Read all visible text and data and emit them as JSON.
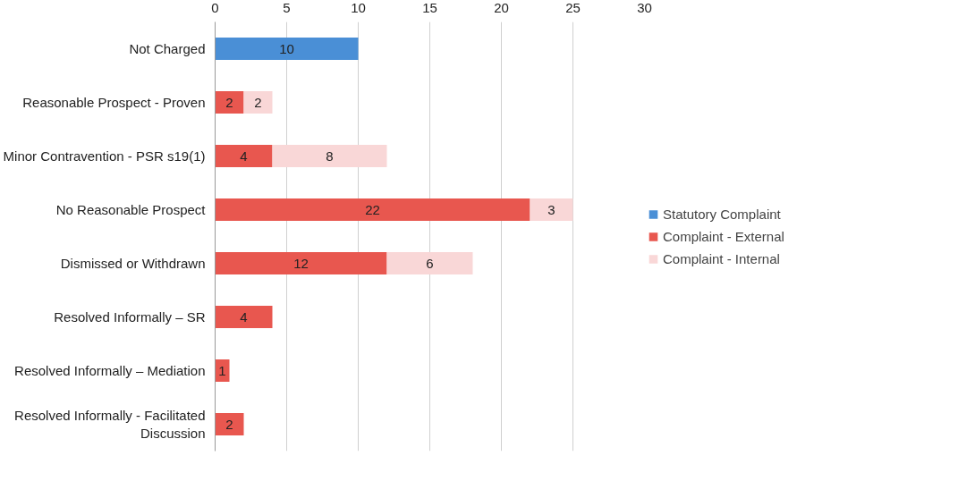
{
  "chart_data": {
    "type": "bar",
    "orientation": "horizontal",
    "stacked": true,
    "data_labels": true,
    "grid": "x",
    "legend": "right",
    "categories": [
      "Not Charged",
      "Reasonable Prospect - Proven",
      "Minor Contravention - PSR s19(1)",
      "No Reasonable Prospect",
      "Dismissed or Withdrawn",
      "Resolved Informally – SR",
      "Resolved Informally – Mediation",
      "Resolved Informally - Facilitated Discussion"
    ],
    "xlim": [
      0,
      30
    ],
    "xticks": [
      0,
      5,
      10,
      15,
      20,
      25,
      30
    ],
    "series": [
      {
        "name": "Statutory Complaint",
        "color": "#4a8fd6",
        "values": [
          10,
          null,
          null,
          null,
          null,
          null,
          null,
          null
        ]
      },
      {
        "name": "Complaint - External",
        "color": "#e8574f",
        "values": [
          null,
          2,
          4,
          22,
          12,
          4,
          1,
          2
        ]
      },
      {
        "name": "Complaint - Internal",
        "color": "#f9d7d7",
        "values": [
          null,
          2,
          8,
          3,
          6,
          null,
          null,
          null
        ]
      }
    ]
  }
}
